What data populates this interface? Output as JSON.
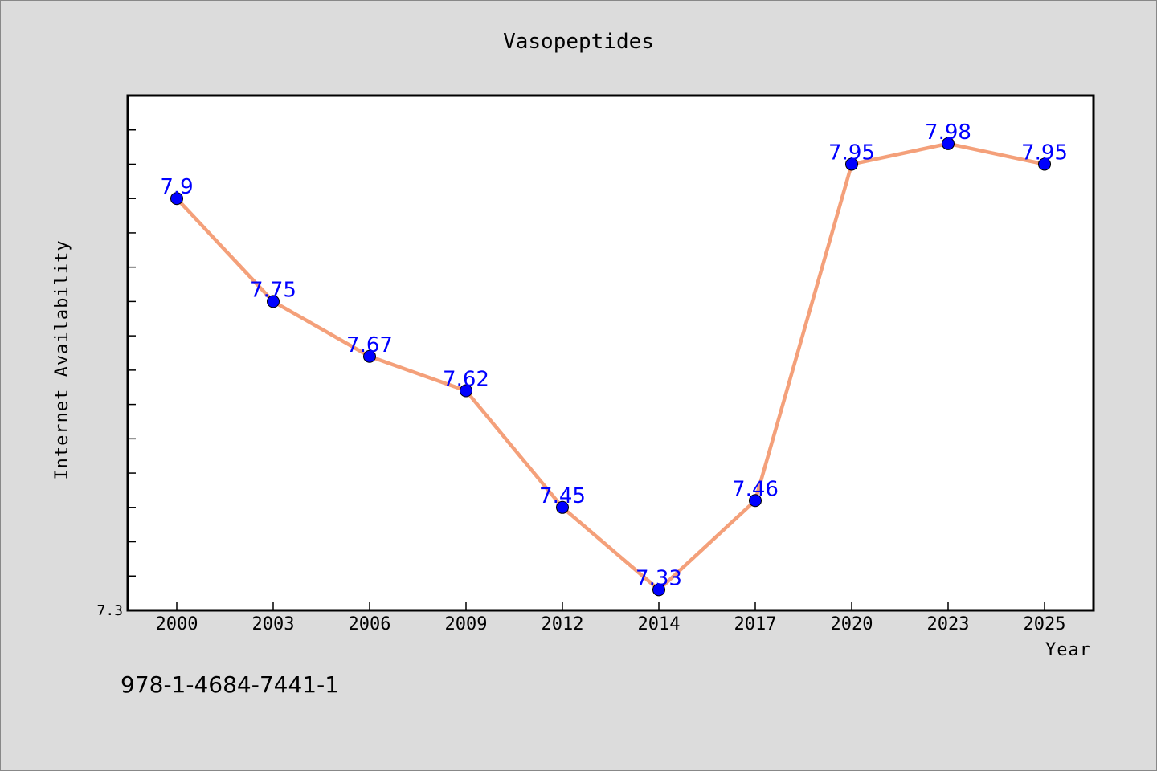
{
  "chart_data": {
    "type": "line",
    "title": "Vasopeptides",
    "xlabel": "Year",
    "ylabel": "Internet Availability",
    "categories": [
      "2000",
      "2003",
      "2006",
      "2009",
      "2012",
      "2014",
      "2017",
      "2020",
      "2023",
      "2025"
    ],
    "values": [
      7.9,
      7.75,
      7.67,
      7.62,
      7.45,
      7.33,
      7.46,
      7.95,
      7.98,
      7.95
    ],
    "data_labels": [
      "7.9",
      "7.75",
      "7.67",
      "7.62",
      "7.45",
      "7.33",
      "7.46",
      "7.95",
      "7.98",
      "7.95"
    ],
    "ylim": [
      7.3,
      8.05
    ],
    "y_tick_labels": [
      "7.3"
    ],
    "grid": false,
    "line_color": "#f4a07a",
    "marker_color": "#0000ff",
    "label_color": "#0000ff",
    "background_color": "#dcdcdc",
    "plot_background": "#ffffff"
  },
  "footer_text": "978-1-4684-7441-1"
}
